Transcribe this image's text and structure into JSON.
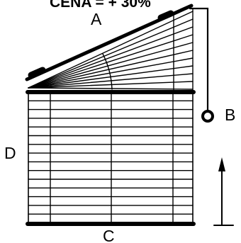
{
  "diagram": {
    "price_label": "CENA = + 30%",
    "label_a": "A",
    "label_b": "B",
    "label_c": "C",
    "label_d": "D"
  },
  "colors": {
    "line": "#000000",
    "background": "#ffffff"
  }
}
